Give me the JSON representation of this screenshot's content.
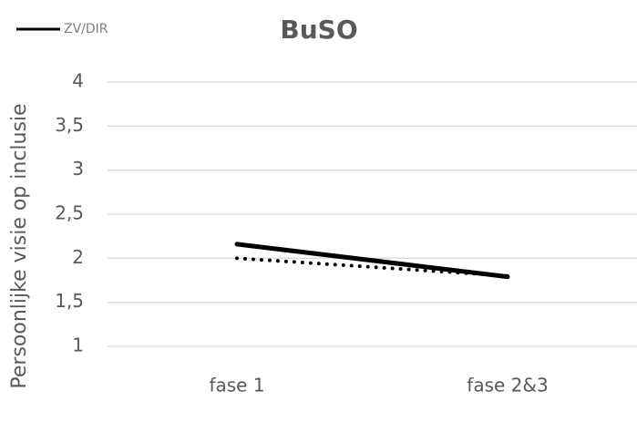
{
  "chart_data": {
    "type": "line",
    "title": "BuSO",
    "y_label": "Persoonlijke visie op inclusie",
    "categories": [
      "fase 1",
      "fase 2&3"
    ],
    "series": [
      {
        "name": "ZV/DIR",
        "color": "#000000",
        "values": [
          2.16,
          1.79
        ],
        "dash": "solid"
      },
      {
        "color": "#000000",
        "values": [
          2.0,
          1.8
        ],
        "dash": "dotted"
      }
    ],
    "ylim": [
      1,
      4
    ],
    "yticks": [
      1,
      {
        "value": 1.5,
        "label": "1,5"
      },
      2,
      {
        "value": 2.5,
        "label": "2,5"
      },
      3,
      {
        "value": 3.5,
        "label": "3,5"
      },
      4
    ],
    "grid": true,
    "legend": "top-left"
  }
}
